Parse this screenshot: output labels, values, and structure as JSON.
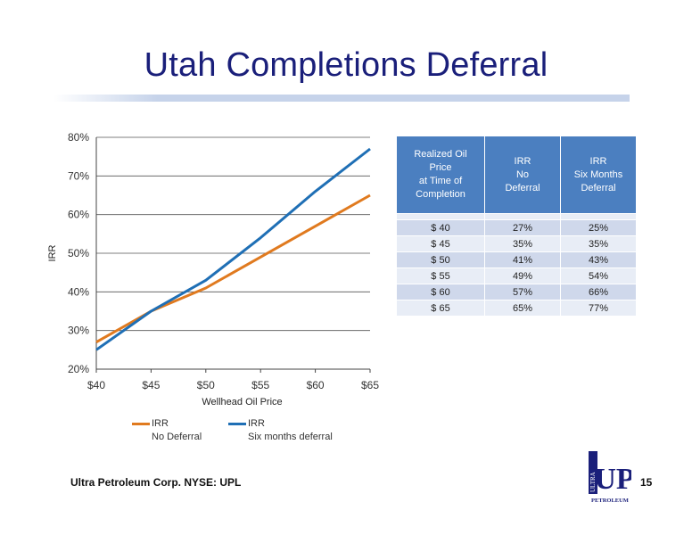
{
  "title": "Utah Completions Deferral",
  "footer": "Ultra Petroleum Corp. NYSE: UPL",
  "page_number": "15",
  "logo": {
    "icon": "ultra-petroleum-logo",
    "text_top": "ULTRA",
    "text_main": "UP",
    "text_bottom": "PETROLEUM",
    "color": "#1a1f7a"
  },
  "chart_data": {
    "type": "line",
    "title": "",
    "xlabel": "Wellhead Oil Price",
    "ylabel": "IRR",
    "x": [
      40,
      45,
      50,
      55,
      60,
      65
    ],
    "x_tick_labels": [
      "$40",
      "$45",
      "$50",
      "$55",
      "$60",
      "$65"
    ],
    "y_tick_labels": [
      "20%",
      "30%",
      "40%",
      "50%",
      "60%",
      "70%",
      "80%"
    ],
    "xlim": [
      40,
      65
    ],
    "ylim": [
      20,
      80
    ],
    "grid": "horizontal",
    "legend_position": "bottom",
    "series": [
      {
        "name": "IRR\nNo Deferral",
        "name_line1": "IRR",
        "name_line2": "No Deferral",
        "values": [
          27,
          35,
          41,
          49,
          57,
          65
        ],
        "color": "#e07a1f"
      },
      {
        "name": "IRR\nSix months deferral",
        "name_line1": "IRR",
        "name_line2": "Six months deferral",
        "values": [
          25,
          35,
          43,
          54,
          66,
          77
        ],
        "color": "#1f6fb5"
      }
    ]
  },
  "table": {
    "headers": [
      [
        "Realized Oil",
        "Price",
        "at Time of",
        "Completion"
      ],
      [
        "IRR",
        "No",
        "Deferral"
      ],
      [
        "IRR",
        "Six Months",
        "Deferral"
      ]
    ],
    "rows": [
      [
        "$ 40",
        "27%",
        "25%"
      ],
      [
        "$ 45",
        "35%",
        "35%"
      ],
      [
        "$ 50",
        "41%",
        "43%"
      ],
      [
        "$ 55",
        "49%",
        "54%"
      ],
      [
        "$ 60",
        "57%",
        "66%"
      ],
      [
        "$ 65",
        "65%",
        "77%"
      ]
    ]
  }
}
